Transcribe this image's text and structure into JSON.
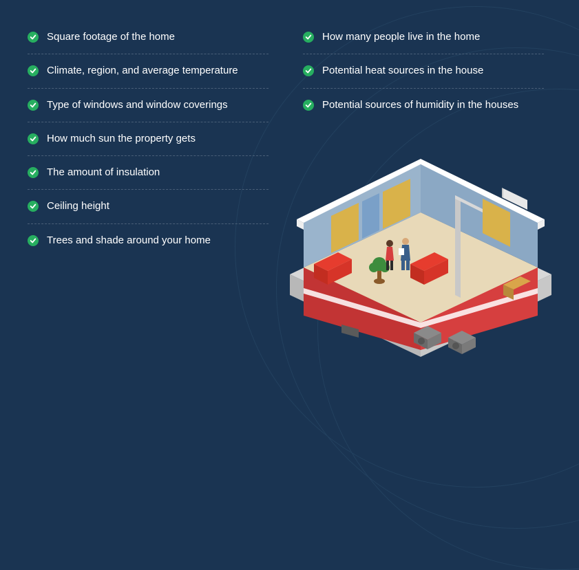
{
  "colors": {
    "background": "#1a3452",
    "text": "#ffffff",
    "check_bg": "#27ae60",
    "divider": "#4a5f78",
    "curve": "#23415f",
    "house_wall_red": "#d63f3f",
    "house_floor": "#e8d9b8",
    "house_interior_wall": "#8ba8c4",
    "house_base": "#d8d8d8",
    "house_roof_edge": "#ffffff",
    "sofa_red": "#e63c2e",
    "curtain": "#d9b24a",
    "plant_green": "#3d8c3d",
    "ac_unit": "#7a7a7a"
  },
  "typography": {
    "item_fontsize": 15,
    "item_weight": 400,
    "line_height": 1.35
  },
  "left_items": [
    "Square footage of the home",
    "Climate, region, and average temperature",
    "Type of windows and window coverings",
    "How much sun the property gets",
    "The amount of insulation",
    "Ceiling height",
    "Trees and shade around your home"
  ],
  "right_items": [
    "How many people live in the home",
    "Potential heat sources in the house",
    "Potential sources of humidity in the houses"
  ]
}
